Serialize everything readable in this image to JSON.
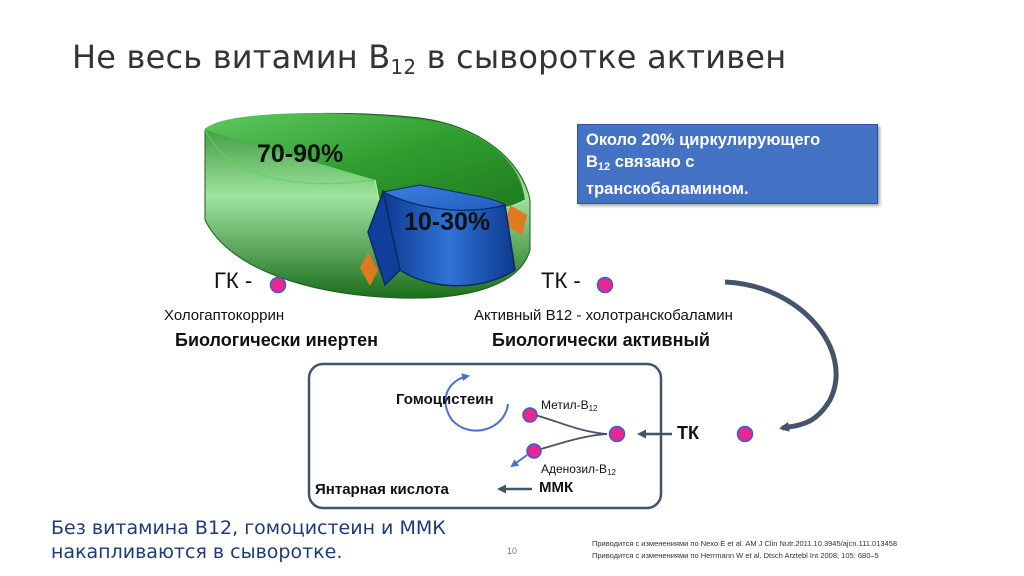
{
  "title": {
    "text": "Не весь витамин В",
    "sub": "12",
    "suffix": " в сыворотке активен"
  },
  "pie": {
    "major_label": "70-90%",
    "minor_label": "10-30%"
  },
  "callout": {
    "line1": "Около 20% циркулирующего",
    "line2_prefix": "В",
    "line2_sub": "12",
    "line2_suffix": " связано с",
    "line3": "транскобаламином."
  },
  "left": {
    "abbr": "ГК -",
    "full": "Хологаптокоррин",
    "status": "Биологически инертен"
  },
  "right": {
    "abbr": "ТК -",
    "full": "Активный В12 - холотранскобаламин",
    "status": "Биологически активный"
  },
  "cell": {
    "homocysteine": "Гомоцистеин",
    "methyl_prefix": "Метил-В",
    "methyl_sub": "12",
    "adenosyl_prefix": "Аденозил-В",
    "adenosyl_sub": "12",
    "mmk": "ММК",
    "succinic": "Янтарная кислота",
    "tk": "ТК"
  },
  "footer": {
    "line1": "Без витамина В12, гомоцистеин и ММК",
    "line2": "накапливаются в сыворотке."
  },
  "page_number": "10",
  "references": [
    "Приводится с изменениями по Nexo E et al. AM J Clin Nutr.2011.10.3945/ajcn.111.013458",
    "Приводится с изменениями по Herrmann W et al. Dtsch Arztebl Int 2008; 105: 680–5"
  ],
  "colors": {
    "green": "#2f9e2f",
    "blue": "#1f5fbf",
    "callout": "#4472c4",
    "dot": "#e8278f",
    "dot_ring": "#3a5fd0",
    "arrow": "#44546a",
    "footer": "#1f3a7a"
  }
}
